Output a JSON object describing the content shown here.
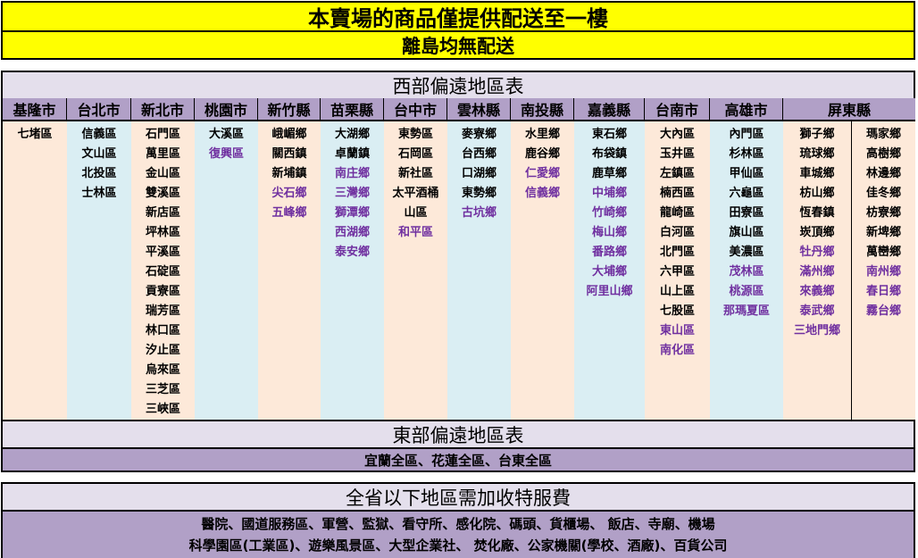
{
  "banner": {
    "title": "本賣場的商品僅提供配送至一樓",
    "subtitle": "離島均無配送"
  },
  "west": {
    "title": "西部偏遠地區表",
    "columns": [
      {
        "header": "基隆市",
        "color": "peach",
        "items": [
          {
            "t": "七堵區",
            "r": false
          }
        ]
      },
      {
        "header": "台北市",
        "color": "blue",
        "items": [
          {
            "t": "信義區",
            "r": false
          },
          {
            "t": "文山區",
            "r": false
          },
          {
            "t": "北投區",
            "r": false
          },
          {
            "t": "士林區",
            "r": false
          }
        ]
      },
      {
        "header": "新北市",
        "color": "peach",
        "items": [
          {
            "t": "石門區",
            "r": false
          },
          {
            "t": "萬里區",
            "r": false
          },
          {
            "t": "金山區",
            "r": false
          },
          {
            "t": "雙溪區",
            "r": false
          },
          {
            "t": "新店區",
            "r": false
          },
          {
            "t": "坪林區",
            "r": false
          },
          {
            "t": "平溪區",
            "r": false
          },
          {
            "t": "石碇區",
            "r": false
          },
          {
            "t": "貢寮區",
            "r": false
          },
          {
            "t": "瑞芳區",
            "r": false
          },
          {
            "t": "林口區",
            "r": false
          },
          {
            "t": "汐止區",
            "r": false
          },
          {
            "t": "烏來區",
            "r": false
          },
          {
            "t": "三芝區",
            "r": false
          },
          {
            "t": "三峽區",
            "r": false
          }
        ]
      },
      {
        "header": "桃園市",
        "color": "blue",
        "items": [
          {
            "t": "大溪區",
            "r": false
          },
          {
            "t": "復興區",
            "r": true
          }
        ]
      },
      {
        "header": "新竹縣",
        "color": "peach",
        "items": [
          {
            "t": "峨嵋鄉",
            "r": false
          },
          {
            "t": "關西鎮",
            "r": false
          },
          {
            "t": "新埔鎮",
            "r": false
          },
          {
            "t": "尖石鄉",
            "r": true
          },
          {
            "t": "五峰鄉",
            "r": true
          }
        ]
      },
      {
        "header": "苗栗縣",
        "color": "blue",
        "items": [
          {
            "t": "大湖鄉",
            "r": false
          },
          {
            "t": "卓蘭鎮",
            "r": false
          },
          {
            "t": "南庄鄉",
            "r": true
          },
          {
            "t": "三灣鄉",
            "r": true
          },
          {
            "t": "獅潭鄉",
            "r": true
          },
          {
            "t": "西湖鄉",
            "r": true
          },
          {
            "t": "泰安鄉",
            "r": true
          }
        ]
      },
      {
        "header": "台中市",
        "color": "peach",
        "items": [
          {
            "t": "東勢區",
            "r": false
          },
          {
            "t": "石岡區",
            "r": false
          },
          {
            "t": "新社區",
            "r": false
          },
          {
            "t": "太平酒桶",
            "r": false
          },
          {
            "t": "山區",
            "r": false
          },
          {
            "t": "和平區",
            "r": true
          }
        ]
      },
      {
        "header": "雲林縣",
        "color": "blue",
        "items": [
          {
            "t": "麥寮鄉",
            "r": false
          },
          {
            "t": "台西鄉",
            "r": false
          },
          {
            "t": "口湖鄉",
            "r": false
          },
          {
            "t": "東勢鄉",
            "r": false
          },
          {
            "t": "古坑鄉",
            "r": true
          }
        ]
      },
      {
        "header": "南投縣",
        "color": "peach",
        "items": [
          {
            "t": "水里鄉",
            "r": false
          },
          {
            "t": "鹿谷鄉",
            "r": false
          },
          {
            "t": "仁愛鄉",
            "r": true
          },
          {
            "t": "信義鄉",
            "r": true
          }
        ]
      },
      {
        "header": "嘉義縣",
        "color": "blue",
        "items": [
          {
            "t": "東石鄉",
            "r": false
          },
          {
            "t": "布袋鎮",
            "r": false
          },
          {
            "t": "鹿草鄉",
            "r": false
          },
          {
            "t": "中埔鄉",
            "r": true
          },
          {
            "t": "竹崎鄉",
            "r": true
          },
          {
            "t": "梅山鄉",
            "r": true
          },
          {
            "t": "番路鄉",
            "r": true
          },
          {
            "t": "大埔鄉",
            "r": true
          },
          {
            "t": "阿里山鄉",
            "r": true
          }
        ]
      },
      {
        "header": "台南市",
        "color": "peach",
        "items": [
          {
            "t": "大內區",
            "r": false
          },
          {
            "t": "玉井區",
            "r": false
          },
          {
            "t": "左鎮區",
            "r": false
          },
          {
            "t": "楠西區",
            "r": false
          },
          {
            "t": "龍崎區",
            "r": false
          },
          {
            "t": "白河區",
            "r": false
          },
          {
            "t": "北門區",
            "r": false
          },
          {
            "t": "六甲區",
            "r": false
          },
          {
            "t": "山上區",
            "r": false
          },
          {
            "t": "七股區",
            "r": false
          },
          {
            "t": "東山區",
            "r": true
          },
          {
            "t": "南化區",
            "r": true
          }
        ]
      },
      {
        "header": "高雄市",
        "color": "blue",
        "items": [
          {
            "t": "內門區",
            "r": false
          },
          {
            "t": "杉林區",
            "r": false
          },
          {
            "t": "甲仙區",
            "r": false
          },
          {
            "t": "六龜區",
            "r": false
          },
          {
            "t": "田寮區",
            "r": false
          },
          {
            "t": "旗山區",
            "r": false
          },
          {
            "t": "美濃區",
            "r": false
          },
          {
            "t": "茂林區",
            "r": true
          },
          {
            "t": "桃源區",
            "r": true
          },
          {
            "t": "那瑪夏區",
            "r": true
          }
        ]
      },
      {
        "header": "屏東縣",
        "color": "peach",
        "items": [
          {
            "t": "獅子鄉",
            "r": false
          },
          {
            "t": "琉球鄉",
            "r": false
          },
          {
            "t": "車城鄉",
            "r": false
          },
          {
            "t": "枋山鄉",
            "r": false
          },
          {
            "t": "恆春鎮",
            "r": false
          },
          {
            "t": "崁頂鄉",
            "r": false
          },
          {
            "t": "牡丹鄉",
            "r": true
          },
          {
            "t": "滿州鄉",
            "r": true
          },
          {
            "t": "來義鄉",
            "r": true
          },
          {
            "t": "泰武鄉",
            "r": true
          },
          {
            "t": "三地門鄉",
            "r": true
          }
        ],
        "items2": [
          {
            "t": "瑪家鄉",
            "r": false
          },
          {
            "t": "高樹鄉",
            "r": false
          },
          {
            "t": "林邊鄉",
            "r": false
          },
          {
            "t": "佳冬鄉",
            "r": false
          },
          {
            "t": "枋寮鄉",
            "r": false
          },
          {
            "t": "新埤鄉",
            "r": false
          },
          {
            "t": "萬巒鄉",
            "r": false
          },
          {
            "t": "南州鄉",
            "r": true
          },
          {
            "t": "春日鄉",
            "r": true
          },
          {
            "t": "霧台鄉",
            "r": true
          }
        ]
      }
    ]
  },
  "east": {
    "title": "東部偏遠地區表",
    "content": "宜蘭全區、花蓮全區、台東全區"
  },
  "surcharge": {
    "title": "全省以下地區需加收特服費",
    "line1": "醫院、國道服務區、軍營、監獄、看守所、感化院、碼頭、貨櫃場、 飯店、寺廟、機場",
    "line2": "科學園區(工業區)、遊樂風景區、大型企業社、 焚化廠、公家機關(學校、酒廠)、百貨公司"
  },
  "colors": {
    "banner": "#ffff00",
    "header": "#b1a0c7",
    "title": "#e4dfec",
    "peach": "#fde9d9",
    "blue": "#daeef3",
    "remote_text": "#7030a0"
  }
}
